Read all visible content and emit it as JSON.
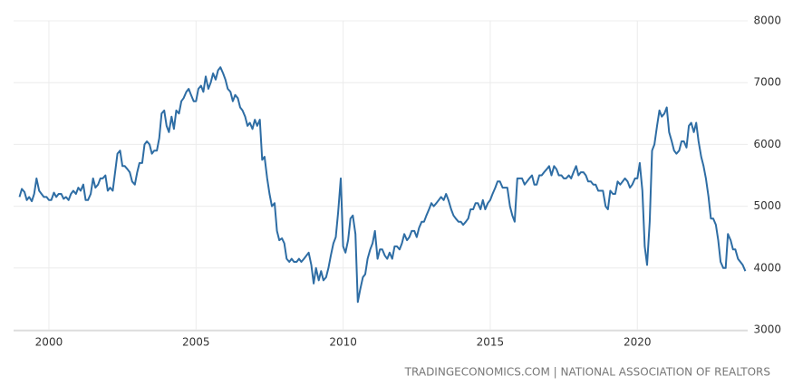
{
  "chart_data": {
    "type": "line",
    "source": "TRADINGECONOMICS.COM | NATIONAL ASSOCIATION OF REALTORS",
    "xlim": [
      1998.8,
      2023.75
    ],
    "xticks": [
      2000,
      2005,
      2010,
      2015,
      2020
    ],
    "ylim": [
      3000,
      8000
    ],
    "yticks": [
      3000,
      4000,
      5000,
      6000,
      7000,
      8000
    ],
    "grid": true,
    "x": [
      1999,
      1999.08,
      1999.17,
      1999.25,
      1999.33,
      1999.42,
      1999.5,
      1999.58,
      1999.67,
      1999.75,
      1999.83,
      1999.92,
      2000,
      2000.08,
      2000.17,
      2000.25,
      2000.33,
      2000.42,
      2000.5,
      2000.58,
      2000.67,
      2000.75,
      2000.83,
      2000.92,
      2001,
      2001.08,
      2001.17,
      2001.25,
      2001.33,
      2001.42,
      2001.5,
      2001.58,
      2001.67,
      2001.75,
      2001.83,
      2001.92,
      2002,
      2002.08,
      2002.17,
      2002.25,
      2002.33,
      2002.42,
      2002.5,
      2002.58,
      2002.67,
      2002.75,
      2002.83,
      2002.92,
      2003,
      2003.08,
      2003.17,
      2003.25,
      2003.33,
      2003.42,
      2003.5,
      2003.58,
      2003.67,
      2003.75,
      2003.83,
      2003.92,
      2004,
      2004.08,
      2004.17,
      2004.25,
      2004.33,
      2004.42,
      2004.5,
      2004.58,
      2004.67,
      2004.75,
      2004.83,
      2004.92,
      2005,
      2005.08,
      2005.17,
      2005.25,
      2005.33,
      2005.42,
      2005.5,
      2005.58,
      2005.67,
      2005.75,
      2005.83,
      2005.92,
      2006,
      2006.08,
      2006.17,
      2006.25,
      2006.33,
      2006.42,
      2006.5,
      2006.58,
      2006.67,
      2006.75,
      2006.83,
      2006.92,
      2007,
      2007.08,
      2007.17,
      2007.25,
      2007.33,
      2007.42,
      2007.5,
      2007.58,
      2007.67,
      2007.75,
      2007.83,
      2007.92,
      2008,
      2008.08,
      2008.17,
      2008.25,
      2008.33,
      2008.42,
      2008.5,
      2008.58,
      2008.67,
      2008.75,
      2008.83,
      2008.92,
      2009,
      2009.08,
      2009.17,
      2009.25,
      2009.33,
      2009.42,
      2009.5,
      2009.58,
      2009.67,
      2009.75,
      2009.83,
      2009.92,
      2010,
      2010.08,
      2010.17,
      2010.25,
      2010.33,
      2010.42,
      2010.5,
      2010.58,
      2010.67,
      2010.75,
      2010.83,
      2010.92,
      2011,
      2011.08,
      2011.17,
      2011.25,
      2011.33,
      2011.42,
      2011.5,
      2011.58,
      2011.67,
      2011.75,
      2011.83,
      2011.92,
      2012,
      2012.08,
      2012.17,
      2012.25,
      2012.33,
      2012.42,
      2012.5,
      2012.58,
      2012.67,
      2012.75,
      2012.83,
      2012.92,
      2013,
      2013.08,
      2013.17,
      2013.25,
      2013.33,
      2013.42,
      2013.5,
      2013.58,
      2013.67,
      2013.75,
      2013.83,
      2013.92,
      2014,
      2014.08,
      2014.17,
      2014.25,
      2014.33,
      2014.42,
      2014.5,
      2014.58,
      2014.67,
      2014.75,
      2014.83,
      2014.92,
      2015,
      2015.08,
      2015.17,
      2015.25,
      2015.33,
      2015.42,
      2015.5,
      2015.58,
      2015.67,
      2015.75,
      2015.83,
      2015.92,
      2016,
      2016.08,
      2016.17,
      2016.25,
      2016.33,
      2016.42,
      2016.5,
      2016.58,
      2016.67,
      2016.75,
      2016.83,
      2016.92,
      2017,
      2017.08,
      2017.17,
      2017.25,
      2017.33,
      2017.42,
      2017.5,
      2017.58,
      2017.67,
      2017.75,
      2017.83,
      2017.92,
      2018,
      2018.08,
      2018.17,
      2018.25,
      2018.33,
      2018.42,
      2018.5,
      2018.58,
      2018.67,
      2018.75,
      2018.83,
      2018.92,
      2019,
      2019.08,
      2019.17,
      2019.25,
      2019.33,
      2019.42,
      2019.5,
      2019.58,
      2019.67,
      2019.75,
      2019.83,
      2019.92,
      2020,
      2020.08,
      2020.17,
      2020.25,
      2020.33,
      2020.42,
      2020.5,
      2020.58,
      2020.67,
      2020.75,
      2020.83,
      2020.92,
      2021,
      2021.08,
      2021.17,
      2021.25,
      2021.33,
      2021.42,
      2021.5,
      2021.58,
      2021.67,
      2021.75,
      2021.83,
      2021.92,
      2022,
      2022.08,
      2022.17,
      2022.25,
      2022.33,
      2022.42,
      2022.5,
      2022.58,
      2022.67,
      2022.75,
      2022.83,
      2022.92,
      2023,
      2023.08,
      2023.17,
      2023.25,
      2023.33,
      2023.42,
      2023.5,
      2023.58,
      2023.67
    ],
    "series": [
      {
        "color": "#2e6da4",
        "values": [
          5150,
          5280,
          5230,
          5100,
          5150,
          5080,
          5200,
          5450,
          5250,
          5200,
          5150,
          5150,
          5100,
          5100,
          5220,
          5150,
          5200,
          5200,
          5120,
          5150,
          5100,
          5200,
          5250,
          5200,
          5300,
          5250,
          5350,
          5100,
          5100,
          5200,
          5450,
          5300,
          5350,
          5450,
          5450,
          5500,
          5250,
          5300,
          5250,
          5550,
          5850,
          5900,
          5650,
          5650,
          5600,
          5550,
          5400,
          5350,
          5550,
          5700,
          5700,
          6000,
          6050,
          6000,
          5850,
          5900,
          5900,
          6100,
          6500,
          6550,
          6300,
          6200,
          6450,
          6250,
          6550,
          6500,
          6700,
          6750,
          6850,
          6900,
          6800,
          6700,
          6700,
          6900,
          6950,
          6850,
          7100,
          6900,
          7000,
          7150,
          7050,
          7200,
          7250,
          7150,
          7050,
          6900,
          6850,
          6700,
          6800,
          6750,
          6600,
          6550,
          6450,
          6300,
          6350,
          6250,
          6400,
          6300,
          6400,
          5750,
          5800,
          5450,
          5200,
          5000,
          5050,
          4600,
          4450,
          4480,
          4400,
          4150,
          4100,
          4150,
          4100,
          4100,
          4150,
          4100,
          4150,
          4200,
          4250,
          4050,
          3750,
          4000,
          3800,
          3950,
          3800,
          3850,
          4000,
          4200,
          4400,
          4500,
          4900,
          5450,
          4350,
          4250,
          4450,
          4800,
          4850,
          4550,
          3450,
          3650,
          3850,
          3900,
          4150,
          4300,
          4400,
          4600,
          4150,
          4300,
          4300,
          4200,
          4150,
          4250,
          4150,
          4350,
          4350,
          4300,
          4400,
          4550,
          4450,
          4500,
          4600,
          4600,
          4500,
          4650,
          4750,
          4750,
          4850,
          4950,
          5050,
          5000,
          5050,
          5100,
          5150,
          5100,
          5200,
          5100,
          4950,
          4850,
          4800,
          4750,
          4750,
          4700,
          4750,
          4800,
          4950,
          4950,
          5050,
          5050,
          4950,
          5100,
          4950,
          5050,
          5100,
          5200,
          5300,
          5400,
          5400,
          5300,
          5300,
          5300,
          5000,
          4850,
          4750,
          5450,
          5450,
          5450,
          5350,
          5400,
          5450,
          5500,
          5350,
          5350,
          5500,
          5500,
          5550,
          5600,
          5650,
          5500,
          5650,
          5600,
          5500,
          5500,
          5450,
          5450,
          5500,
          5450,
          5550,
          5650,
          5500,
          5550,
          5550,
          5500,
          5400,
          5400,
          5350,
          5350,
          5250,
          5250,
          5250,
          5000,
          4950,
          5250,
          5200,
          5200,
          5400,
          5350,
          5400,
          5450,
          5400,
          5300,
          5350,
          5450,
          5450,
          5700,
          5250,
          4350,
          4050,
          4750,
          5900,
          6000,
          6300,
          6550,
          6450,
          6500,
          6600,
          6200,
          6050,
          5900,
          5850,
          5900,
          6050,
          6050,
          5950,
          6300,
          6350,
          6200,
          6350,
          6050,
          5800,
          5650,
          5450,
          5150,
          4800,
          4800,
          4700,
          4450,
          4100,
          4000,
          4000,
          4550,
          4450,
          4300,
          4300,
          4150,
          4100,
          4050,
          3950
        ]
      }
    ]
  }
}
